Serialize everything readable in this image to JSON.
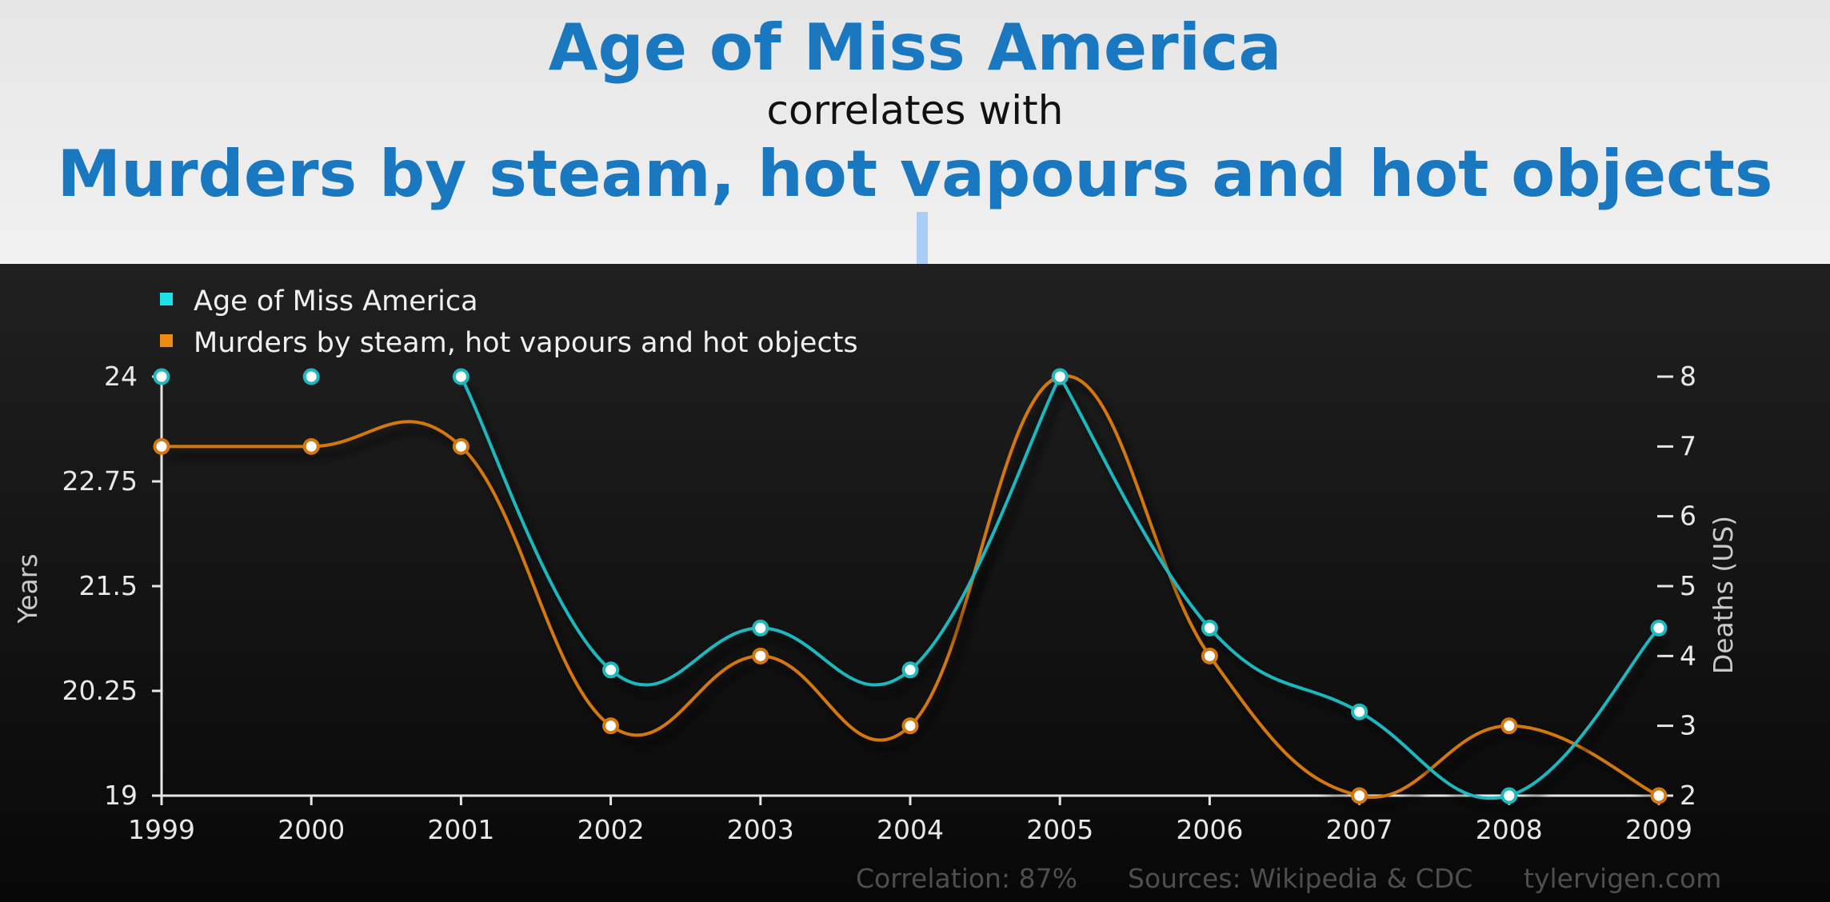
{
  "header": {
    "title_top": "Age of Miss America",
    "connector": "correlates with",
    "title_bottom": "Murders by steam, hot vapours and hot objects"
  },
  "colors": {
    "series_age": "#1fb8bf",
    "series_murders": "#d4780f",
    "header_title": "#1a78c1",
    "background": "#111111"
  },
  "chart_data": {
    "type": "line",
    "x": [
      "1999",
      "2000",
      "2001",
      "2002",
      "2003",
      "2004",
      "2005",
      "2006",
      "2007",
      "2008",
      "2009"
    ],
    "series": [
      {
        "name": "Age of Miss America",
        "axis": "left",
        "values": [
          24,
          24,
          24,
          20.5,
          21,
          20.5,
          24,
          21,
          20,
          19,
          21
        ],
        "segments": [
          [
            0,
            1
          ],
          [
            2,
            6
          ],
          [
            6,
            10
          ]
        ]
      },
      {
        "name": "Murders by steam, hot vapours and hot objects",
        "axis": "right",
        "values": [
          7,
          7,
          7,
          3,
          4,
          3,
          8,
          4,
          2,
          3,
          2
        ],
        "segments": [
          [
            0,
            10
          ]
        ]
      }
    ],
    "y_left": {
      "label": "Years",
      "ticks": [
        "19",
        "20.25",
        "21.5",
        "22.75",
        "24"
      ],
      "ylim": [
        19,
        24
      ]
    },
    "y_right": {
      "label": "Deaths (US)",
      "ticks": [
        "2",
        "3",
        "4",
        "5",
        "6",
        "7",
        "8"
      ],
      "ylim": [
        2,
        8
      ]
    },
    "legend_position": "top-left",
    "grid": false,
    "footer": {
      "correlation": "Correlation: 87%",
      "sources": "Sources: Wikipedia & CDC",
      "site": "tylervigen.com"
    }
  }
}
